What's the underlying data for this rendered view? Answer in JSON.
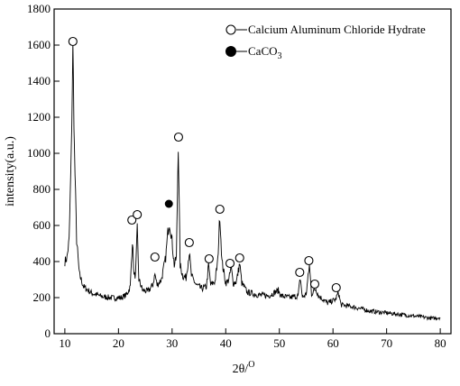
{
  "chart_data": {
    "type": "line",
    "xlabel": "2θ/",
    "xlabel_sup": "O",
    "ylabel": "intensity(a.u.)",
    "xlim": [
      8,
      82
    ],
    "ylim": [
      0,
      1800
    ],
    "xticks": [
      10,
      20,
      30,
      40,
      50,
      60,
      70,
      80
    ],
    "yticks": [
      0,
      200,
      400,
      600,
      800,
      1000,
      1200,
      1400,
      1600,
      1800
    ],
    "grid": false,
    "legend_position": "top-right",
    "legend": [
      {
        "marker": "open-circle",
        "text": "Calcium Aluminum Chloride Hydrate",
        "sub": ""
      },
      {
        "marker": "filled-circle",
        "text": "CaCO",
        "sub": "3"
      }
    ],
    "baseline": [
      [
        10.0,
        400
      ],
      [
        10.4,
        420
      ],
      [
        10.8,
        520
      ],
      [
        11.2,
        1000
      ],
      [
        11.5,
        1580
      ],
      [
        11.8,
        1000
      ],
      [
        12.2,
        520
      ],
      [
        12.7,
        330
      ],
      [
        13.5,
        260
      ],
      [
        15,
        225
      ],
      [
        17,
        205
      ],
      [
        19,
        198
      ],
      [
        20.5,
        200
      ],
      [
        21.5,
        215
      ],
      [
        22.2,
        260
      ],
      [
        22.6,
        520
      ],
      [
        22.9,
        320
      ],
      [
        23.2,
        330
      ],
      [
        23.5,
        580
      ],
      [
        23.8,
        300
      ],
      [
        24.5,
        240
      ],
      [
        25.5,
        235
      ],
      [
        26.4,
        270
      ],
      [
        26.8,
        330
      ],
      [
        27.2,
        270
      ],
      [
        28.0,
        300
      ],
      [
        28.8,
        420
      ],
      [
        29.2,
        560
      ],
      [
        29.5,
        620
      ],
      [
        29.9,
        540
      ],
      [
        30.4,
        380
      ],
      [
        30.8,
        420
      ],
      [
        31.15,
        1060
      ],
      [
        31.5,
        380
      ],
      [
        32.0,
        320
      ],
      [
        32.6,
        310
      ],
      [
        33.2,
        450
      ],
      [
        33.6,
        320
      ],
      [
        34.5,
        270
      ],
      [
        35.5,
        250
      ],
      [
        36.4,
        260
      ],
      [
        36.8,
        380
      ],
      [
        37.2,
        270
      ],
      [
        38.0,
        290
      ],
      [
        38.5,
        400
      ],
      [
        38.9,
        660
      ],
      [
        39.3,
        400
      ],
      [
        40.0,
        280
      ],
      [
        40.6,
        300
      ],
      [
        41.0,
        370
      ],
      [
        41.4,
        280
      ],
      [
        42.0,
        290
      ],
      [
        42.6,
        390
      ],
      [
        43.0,
        280
      ],
      [
        44.0,
        230
      ],
      [
        46.0,
        215
      ],
      [
        48.0,
        210
      ],
      [
        49.8,
        240
      ],
      [
        50.3,
        210
      ],
      [
        52.0,
        200
      ],
      [
        53.5,
        210
      ],
      [
        53.9,
        310
      ],
      [
        54.3,
        200
      ],
      [
        55.0,
        220
      ],
      [
        55.6,
        380
      ],
      [
        56.0,
        220
      ],
      [
        56.8,
        250
      ],
      [
        57.3,
        210
      ],
      [
        59.0,
        170
      ],
      [
        60.5,
        190
      ],
      [
        61.0,
        230
      ],
      [
        61.5,
        160
      ],
      [
        63.5,
        150
      ],
      [
        65.0,
        140
      ],
      [
        67.0,
        125
      ],
      [
        70.0,
        115
      ],
      [
        73.0,
        105
      ],
      [
        76.0,
        95
      ],
      [
        78.5,
        85
      ],
      [
        80.0,
        90
      ]
    ],
    "open_markers": [
      [
        11.5,
        1620
      ],
      [
        22.5,
        630
      ],
      [
        23.5,
        660
      ],
      [
        26.8,
        425
      ],
      [
        31.2,
        1090
      ],
      [
        33.2,
        505
      ],
      [
        36.9,
        415
      ],
      [
        38.9,
        690
      ],
      [
        40.8,
        390
      ],
      [
        42.6,
        420
      ],
      [
        53.8,
        340
      ],
      [
        55.5,
        405
      ],
      [
        56.6,
        275
      ],
      [
        60.6,
        255
      ]
    ],
    "filled_markers": [
      [
        29.4,
        720
      ]
    ]
  }
}
